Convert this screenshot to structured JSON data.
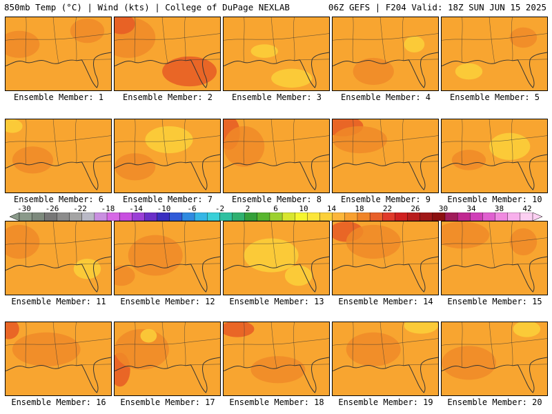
{
  "header": {
    "left": "850mb Temp (°C) | Wind (kts) | College of DuPage NEXLAB",
    "right": "06Z GEFS | F204 Valid: 18Z SUN JUN 15 2025"
  },
  "colorbar": {
    "ticks": [
      "-30",
      "-26",
      "-22",
      "-18",
      "-14",
      "-10",
      "-6",
      "-2",
      "2",
      "6",
      "10",
      "14",
      "18",
      "22",
      "26",
      "30",
      "34",
      "38",
      "42"
    ],
    "colors": [
      "#8a9a8a",
      "#7d8a7d",
      "#777777",
      "#8c8c8c",
      "#a4a4a4",
      "#b9b9c6",
      "#c98fe0",
      "#d768e6",
      "#c84fe0",
      "#9b3fd6",
      "#6a2fc8",
      "#3a2fc0",
      "#2f5ad8",
      "#2f8ae0",
      "#35b6e6",
      "#3ad0d8",
      "#2fc0a0",
      "#2fb070",
      "#34a03a",
      "#58b52f",
      "#9cd12f",
      "#d8e62f",
      "#f6f62f",
      "#fce63a",
      "#fcd03a",
      "#fcb63a",
      "#f8a030",
      "#f08428",
      "#e8602a",
      "#e03a2a",
      "#d02020",
      "#b81c1c",
      "#a01818",
      "#8c1010",
      "#a01c5a",
      "#c02890",
      "#d040b8",
      "#e060d0",
      "#f08ae0",
      "#f8b0ec",
      "#fcd0f2"
    ]
  },
  "panels": [
    {
      "label": "Ensemble Member: 1"
    },
    {
      "label": "Ensemble Member: 2"
    },
    {
      "label": "Ensemble Member: 3"
    },
    {
      "label": "Ensemble Member: 4"
    },
    {
      "label": "Ensemble Member: 5"
    },
    {
      "label": "Ensemble Member: 6"
    },
    {
      "label": "Ensemble Member: 7"
    },
    {
      "label": "Ensemble Member: 8"
    },
    {
      "label": "Ensemble Member: 9"
    },
    {
      "label": "Ensemble Member: 10"
    },
    {
      "label": "Ensemble Member: 11"
    },
    {
      "label": "Ensemble Member: 12"
    },
    {
      "label": "Ensemble Member: 13"
    },
    {
      "label": "Ensemble Member: 14"
    },
    {
      "label": "Ensemble Member: 15"
    },
    {
      "label": "Ensemble Member: 16"
    },
    {
      "label": "Ensemble Member: 17"
    },
    {
      "label": "Ensemble Member: 18"
    },
    {
      "label": "Ensemble Member: 19"
    },
    {
      "label": "Ensemble Member: 20"
    }
  ],
  "colors": {
    "base": "#f8a530",
    "warm": "#f08a28",
    "hot": "#e65a24",
    "cool": "#fcd03a",
    "coast": "#333333"
  }
}
